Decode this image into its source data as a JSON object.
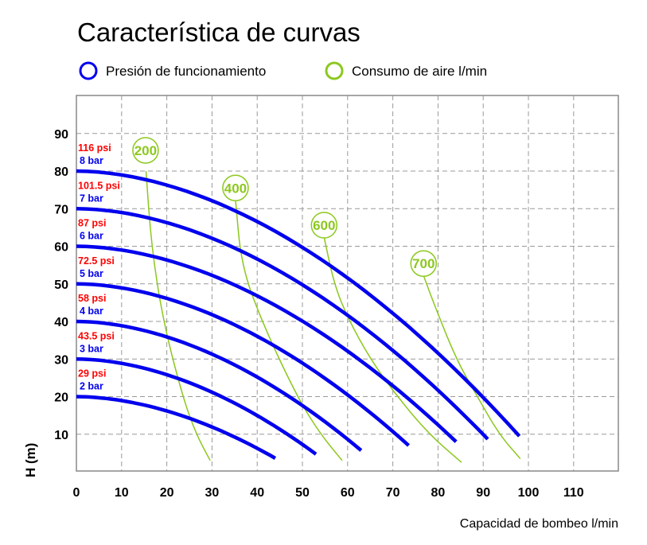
{
  "chart_data": {
    "type": "line",
    "title": "Característica de curvas",
    "xlabel": "Capacidad de bombeo  l/min",
    "ylabel": "H (m)",
    "xlim": [
      0,
      120
    ],
    "ylim": [
      0,
      100
    ],
    "xticks": [
      0,
      10,
      20,
      30,
      40,
      50,
      60,
      70,
      80,
      90,
      100,
      110
    ],
    "yticks": [
      10,
      20,
      30,
      40,
      50,
      60,
      70,
      80,
      90
    ],
    "grid": true,
    "legend": [
      {
        "label": "Presión de funcionamiento",
        "color": "#0000ee"
      },
      {
        "label": "Consumo de aire l/min",
        "color": "#8cc81e"
      }
    ],
    "pressure_series": [
      {
        "bar": "8 bar",
        "psi": "116 psi",
        "start": [
          0,
          80
        ],
        "end": [
          98,
          9.5
        ]
      },
      {
        "bar": "7 bar",
        "psi": "101.5 psi",
        "start": [
          0,
          70
        ],
        "end": [
          91,
          8.7
        ]
      },
      {
        "bar": "6 bar",
        "psi": "87 psi",
        "start": [
          0,
          60
        ],
        "end": [
          84,
          8
        ]
      },
      {
        "bar": "5 bar",
        "psi": "72.5 psi",
        "start": [
          0,
          50
        ],
        "end": [
          73.5,
          7
        ]
      },
      {
        "bar": "4 bar",
        "psi": "58 psi",
        "start": [
          0,
          40
        ],
        "end": [
          63,
          5.7
        ]
      },
      {
        "bar": "3 bar",
        "psi": "43.5 psi",
        "start": [
          0,
          30
        ],
        "end": [
          53,
          4.7
        ]
      },
      {
        "bar": "2 bar",
        "psi": "29 psi",
        "start": [
          0,
          20
        ],
        "end": [
          44,
          3.6
        ]
      }
    ],
    "air_series": [
      {
        "label": "200",
        "label_at": [
          15.3,
          85.5
        ],
        "points": [
          [
            15.4,
            80
          ],
          [
            16.6,
            60
          ],
          [
            19.2,
            40
          ],
          [
            23.5,
            20
          ],
          [
            26.5,
            10
          ],
          [
            29.6,
            3
          ]
        ]
      },
      {
        "label": "400",
        "label_at": [
          35.2,
          75.5
        ],
        "points": [
          [
            35.2,
            72.3
          ],
          [
            36.5,
            55
          ],
          [
            41,
            40
          ],
          [
            48.8,
            20
          ],
          [
            54,
            10
          ],
          [
            58.8,
            3
          ]
        ]
      },
      {
        "label": "600",
        "label_at": [
          54.8,
          65.6
        ],
        "points": [
          [
            54.8,
            62.4
          ],
          [
            57,
            50
          ],
          [
            60,
            41
          ],
          [
            65,
            30
          ],
          [
            71,
            20
          ],
          [
            78,
            10
          ],
          [
            85.2,
            2.5
          ]
        ]
      },
      {
        "label": "700",
        "label_at": [
          76.8,
          55.4
        ],
        "points": [
          [
            76.8,
            52.2
          ],
          [
            79,
            45
          ],
          [
            84,
            30
          ],
          [
            88.7,
            20
          ],
          [
            93.5,
            10
          ],
          [
            98.2,
            3.5
          ]
        ]
      }
    ]
  }
}
